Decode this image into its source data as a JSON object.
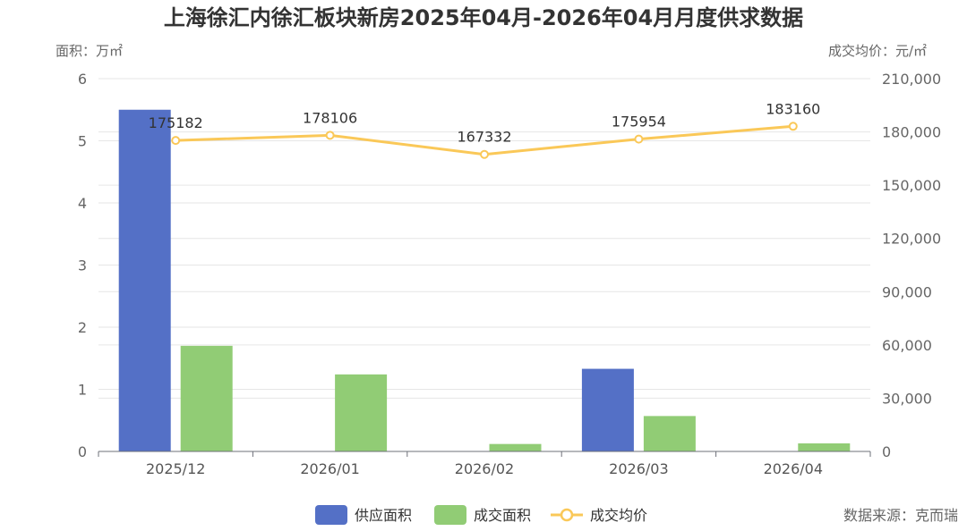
{
  "title": "上海徐汇内徐汇板块新房2025年04月-2026年04月月度供求数据",
  "left_axis_label": "面积：万㎡",
  "right_axis_label": "成交均价：元/㎡",
  "source": "数据来源：克而瑞",
  "colors": {
    "supply": "#5470c6",
    "deal_area": "#91cc75",
    "avg_price": "#fac858",
    "grid": "#e6e6e6",
    "axis": "#6e7079"
  },
  "chart_data": {
    "type": "bar",
    "categories": [
      "2025/12",
      "2026/01",
      "2026/02",
      "2026/03",
      "2026/04"
    ],
    "series": [
      {
        "name": "供应面积",
        "type": "bar",
        "axis": "left",
        "values": [
          5.5,
          0,
          0,
          1.33,
          0
        ]
      },
      {
        "name": "成交面积",
        "type": "bar",
        "axis": "left",
        "values": [
          1.7,
          1.24,
          0.12,
          0.57,
          0.13
        ]
      },
      {
        "name": "成交均价",
        "type": "line",
        "axis": "right",
        "values": [
          175182,
          178106,
          167332,
          175954,
          183160
        ],
        "labels": [
          "175182",
          "178106",
          "167332",
          "175954",
          "183160"
        ]
      }
    ],
    "left_ylim": [
      0,
      6
    ],
    "left_ticks": [
      "0",
      "1",
      "2",
      "3",
      "4",
      "5",
      "6"
    ],
    "right_ylim": [
      0,
      210000
    ],
    "right_ticks": [
      "0",
      "30,000",
      "60,000",
      "90,000",
      "120,000",
      "150,000",
      "180,000",
      "210,000"
    ],
    "grid": true,
    "legend_position": "bottom-center"
  }
}
